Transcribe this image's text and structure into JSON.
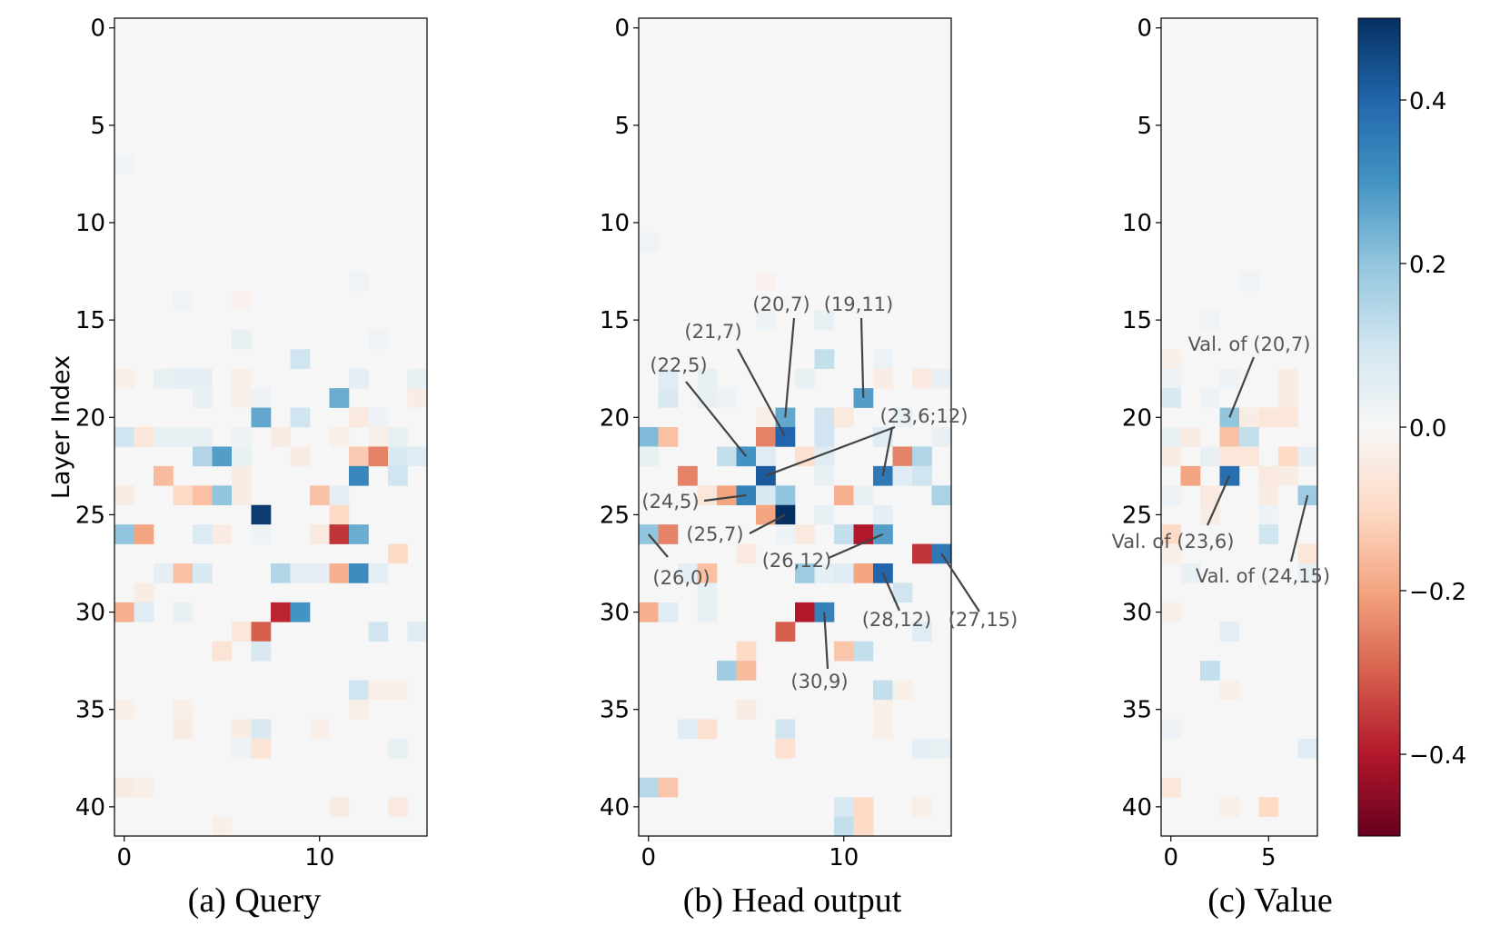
{
  "chart_data": [
    {
      "type": "heatmap",
      "panel": "query",
      "caption": "(a) Query",
      "ylabel": "Layer Index",
      "n_cols": 16,
      "n_rows": 42,
      "x_ticks": [
        0,
        10
      ],
      "y_ticks": [
        0,
        5,
        10,
        15,
        20,
        25,
        30,
        35,
        40
      ],
      "cells": [
        [
          7,
          0,
          0.015
        ],
        [
          13,
          12,
          0.02
        ],
        [
          14,
          6,
          -0.02
        ],
        [
          14,
          3,
          0.02
        ],
        [
          16,
          6,
          0.04
        ],
        [
          16,
          13,
          0.02
        ],
        [
          17,
          9,
          0.1
        ],
        [
          18,
          0,
          -0.03
        ],
        [
          18,
          2,
          0.04
        ],
        [
          18,
          3,
          0.05
        ],
        [
          18,
          4,
          0.05
        ],
        [
          18,
          6,
          -0.03
        ],
        [
          18,
          12,
          0.05
        ],
        [
          18,
          15,
          0.04
        ],
        [
          19,
          4,
          0.04
        ],
        [
          19,
          6,
          -0.03
        ],
        [
          19,
          7,
          0.03
        ],
        [
          19,
          11,
          0.25
        ],
        [
          19,
          15,
          -0.04
        ],
        [
          20,
          9,
          0.1
        ],
        [
          20,
          12,
          -0.05
        ],
        [
          20,
          13,
          0.03
        ],
        [
          20,
          7,
          0.26
        ],
        [
          21,
          0,
          0.1
        ],
        [
          21,
          1,
          -0.06
        ],
        [
          21,
          2,
          0.04
        ],
        [
          21,
          3,
          0.04
        ],
        [
          21,
          4,
          0.04
        ],
        [
          21,
          6,
          0.03
        ],
        [
          21,
          8,
          -0.04
        ],
        [
          21,
          11,
          -0.03
        ],
        [
          21,
          13,
          -0.03
        ],
        [
          21,
          14,
          0.04
        ],
        [
          22,
          4,
          0.15
        ],
        [
          22,
          5,
          0.28
        ],
        [
          22,
          6,
          0.04
        ],
        [
          22,
          9,
          -0.04
        ],
        [
          22,
          12,
          -0.13
        ],
        [
          22,
          13,
          -0.25
        ],
        [
          22,
          14,
          0.08
        ],
        [
          22,
          15,
          0.06
        ],
        [
          23,
          2,
          -0.16
        ],
        [
          23,
          12,
          0.33
        ],
        [
          23,
          14,
          0.1
        ],
        [
          23,
          6,
          -0.04
        ],
        [
          24,
          3,
          -0.1
        ],
        [
          24,
          4,
          -0.15
        ],
        [
          24,
          5,
          0.2
        ],
        [
          24,
          6,
          -0.04
        ],
        [
          24,
          10,
          -0.15
        ],
        [
          24,
          11,
          0.05
        ],
        [
          24,
          0,
          -0.04
        ],
        [
          25,
          7,
          0.48
        ],
        [
          25,
          11,
          -0.1
        ],
        [
          26,
          0,
          0.2
        ],
        [
          26,
          1,
          -0.2
        ],
        [
          26,
          4,
          0.07
        ],
        [
          26,
          5,
          -0.04
        ],
        [
          26,
          7,
          0.03
        ],
        [
          26,
          10,
          -0.05
        ],
        [
          26,
          11,
          -0.36
        ],
        [
          26,
          12,
          0.25
        ],
        [
          27,
          14,
          -0.1
        ],
        [
          28,
          2,
          0.05
        ],
        [
          28,
          3,
          -0.15
        ],
        [
          28,
          4,
          0.08
        ],
        [
          28,
          8,
          0.15
        ],
        [
          28,
          9,
          0.05
        ],
        [
          28,
          10,
          0.05
        ],
        [
          28,
          11,
          -0.18
        ],
        [
          28,
          12,
          0.32
        ],
        [
          28,
          13,
          0.05
        ],
        [
          29,
          1,
          -0.04
        ],
        [
          30,
          0,
          -0.18
        ],
        [
          30,
          1,
          0.06
        ],
        [
          30,
          3,
          0.04
        ],
        [
          30,
          8,
          -0.38
        ],
        [
          30,
          9,
          0.3
        ],
        [
          31,
          6,
          -0.06
        ],
        [
          31,
          7,
          -0.3
        ],
        [
          31,
          13,
          0.1
        ],
        [
          31,
          15,
          0.06
        ],
        [
          32,
          5,
          -0.07
        ],
        [
          32,
          7,
          0.08
        ],
        [
          34,
          12,
          0.1
        ],
        [
          34,
          13,
          -0.03
        ],
        [
          34,
          14,
          -0.03
        ],
        [
          35,
          0,
          -0.03
        ],
        [
          35,
          3,
          -0.03
        ],
        [
          35,
          12,
          -0.03
        ],
        [
          36,
          3,
          -0.04
        ],
        [
          36,
          6,
          -0.04
        ],
        [
          36,
          7,
          0.08
        ],
        [
          36,
          10,
          -0.03
        ],
        [
          37,
          6,
          0.03
        ],
        [
          37,
          7,
          -0.07
        ],
        [
          37,
          14,
          0.04
        ],
        [
          39,
          0,
          -0.04
        ],
        [
          39,
          1,
          -0.03
        ],
        [
          40,
          11,
          -0.04
        ],
        [
          40,
          14,
          -0.05
        ],
        [
          41,
          5,
          -0.03
        ]
      ]
    },
    {
      "type": "heatmap",
      "panel": "head_output",
      "caption": "(b) Head output",
      "ylabel": "",
      "n_cols": 16,
      "n_rows": 42,
      "x_ticks": [
        0,
        10
      ],
      "y_ticks": [
        0,
        5,
        10,
        15,
        20,
        25,
        30,
        35,
        40
      ],
      "cells": [
        [
          11,
          0,
          0.02
        ],
        [
          13,
          6,
          -0.02
        ],
        [
          15,
          6,
          0.03
        ],
        [
          15,
          9,
          0.04
        ],
        [
          17,
          9,
          0.12
        ],
        [
          17,
          12,
          0.03
        ],
        [
          18,
          1,
          0.06
        ],
        [
          18,
          3,
          0.04
        ],
        [
          18,
          8,
          0.04
        ],
        [
          18,
          12,
          -0.04
        ],
        [
          18,
          14,
          -0.05
        ],
        [
          18,
          15,
          0.04
        ],
        [
          19,
          1,
          0.08
        ],
        [
          19,
          3,
          0.04
        ],
        [
          19,
          4,
          0.03
        ],
        [
          19,
          11,
          0.28
        ],
        [
          20,
          6,
          -0.03
        ],
        [
          20,
          7,
          0.26
        ],
        [
          20,
          9,
          0.1
        ],
        [
          20,
          10,
          -0.05
        ],
        [
          20,
          13,
          0.04
        ],
        [
          21,
          0,
          0.22
        ],
        [
          21,
          1,
          -0.15
        ],
        [
          21,
          6,
          -0.25
        ],
        [
          21,
          7,
          0.4
        ],
        [
          21,
          9,
          0.1
        ],
        [
          21,
          12,
          0.06
        ],
        [
          21,
          15,
          0.04
        ],
        [
          22,
          0,
          0.04
        ],
        [
          22,
          4,
          0.12
        ],
        [
          22,
          5,
          0.3
        ],
        [
          22,
          6,
          0.06
        ],
        [
          22,
          8,
          -0.08
        ],
        [
          22,
          9,
          0.06
        ],
        [
          22,
          13,
          -0.25
        ],
        [
          22,
          14,
          0.15
        ],
        [
          23,
          2,
          -0.25
        ],
        [
          23,
          6,
          0.42
        ],
        [
          23,
          9,
          0.04
        ],
        [
          23,
          12,
          0.36
        ],
        [
          23,
          13,
          0.06
        ],
        [
          23,
          14,
          0.1
        ],
        [
          24,
          3,
          -0.06
        ],
        [
          24,
          4,
          -0.2
        ],
        [
          24,
          5,
          0.34
        ],
        [
          24,
          6,
          0.08
        ],
        [
          24,
          7,
          0.2
        ],
        [
          24,
          10,
          -0.18
        ],
        [
          24,
          11,
          0.04
        ],
        [
          24,
          15,
          0.16
        ],
        [
          25,
          6,
          -0.2
        ],
        [
          25,
          7,
          0.5
        ],
        [
          25,
          9,
          0.04
        ],
        [
          25,
          12,
          0.05
        ],
        [
          26,
          0,
          0.2
        ],
        [
          26,
          1,
          -0.25
        ],
        [
          26,
          7,
          0.03
        ],
        [
          26,
          8,
          -0.05
        ],
        [
          26,
          10,
          0.12
        ],
        [
          26,
          11,
          -0.4
        ],
        [
          26,
          12,
          0.28
        ],
        [
          27,
          5,
          -0.05
        ],
        [
          27,
          14,
          -0.36
        ],
        [
          27,
          15,
          0.36
        ],
        [
          28,
          2,
          0.05
        ],
        [
          28,
          3,
          -0.15
        ],
        [
          28,
          8,
          0.18
        ],
        [
          28,
          9,
          0.05
        ],
        [
          28,
          10,
          0.06
        ],
        [
          28,
          11,
          -0.2
        ],
        [
          28,
          12,
          0.4
        ],
        [
          29,
          3,
          0.04
        ],
        [
          29,
          13,
          0.1
        ],
        [
          30,
          0,
          -0.18
        ],
        [
          30,
          1,
          0.06
        ],
        [
          30,
          3,
          0.04
        ],
        [
          30,
          8,
          -0.4
        ],
        [
          30,
          9,
          0.34
        ],
        [
          31,
          7,
          -0.3
        ],
        [
          31,
          14,
          0.06
        ],
        [
          32,
          5,
          -0.1
        ],
        [
          32,
          10,
          -0.14
        ],
        [
          32,
          11,
          0.12
        ],
        [
          33,
          4,
          0.18
        ],
        [
          33,
          5,
          -0.16
        ],
        [
          34,
          12,
          0.12
        ],
        [
          34,
          13,
          -0.03
        ],
        [
          35,
          5,
          -0.04
        ],
        [
          35,
          12,
          -0.03
        ],
        [
          36,
          2,
          0.06
        ],
        [
          36,
          3,
          -0.08
        ],
        [
          36,
          7,
          0.1
        ],
        [
          36,
          12,
          -0.03
        ],
        [
          37,
          7,
          -0.08
        ],
        [
          37,
          14,
          0.05
        ],
        [
          37,
          15,
          0.04
        ],
        [
          39,
          0,
          0.14
        ],
        [
          39,
          1,
          -0.14
        ],
        [
          40,
          10,
          0.08
        ],
        [
          40,
          11,
          -0.1
        ],
        [
          40,
          14,
          -0.03
        ],
        [
          41,
          10,
          0.12
        ],
        [
          41,
          11,
          -0.1
        ]
      ],
      "annotations": [
        {
          "text": "(20,7)",
          "col": 7,
          "row": 20
        },
        {
          "text": "(19,11)",
          "col": 11,
          "row": 19
        },
        {
          "text": "(21,7)",
          "col": 7,
          "row": 21
        },
        {
          "text": "(22,5)",
          "col": 5,
          "row": 22
        },
        {
          "text": "(23,6;12)",
          "col": 6,
          "row": 23
        },
        {
          "text": "(24,5)",
          "col": 5,
          "row": 24
        },
        {
          "text": "(25,7)",
          "col": 7,
          "row": 25
        },
        {
          "text": "(26,0)",
          "col": 0,
          "row": 26
        },
        {
          "text": "(26,12)",
          "col": 12,
          "row": 26
        },
        {
          "text": "(28,12)",
          "col": 12,
          "row": 28
        },
        {
          "text": "(27,15)",
          "col": 15,
          "row": 27
        },
        {
          "text": "(30,9)",
          "col": 9,
          "row": 30
        }
      ]
    },
    {
      "type": "heatmap",
      "panel": "value",
      "caption": "(c) Value",
      "ylabel": "",
      "n_cols": 8,
      "n_rows": 42,
      "x_ticks": [
        0,
        5
      ],
      "y_ticks": [
        0,
        5,
        10,
        15,
        20,
        25,
        30,
        35,
        40
      ],
      "cells": [
        [
          13,
          4,
          0.02
        ],
        [
          15,
          2,
          0.02
        ],
        [
          17,
          0,
          -0.03
        ],
        [
          18,
          0,
          0.03
        ],
        [
          18,
          3,
          0.03
        ],
        [
          18,
          6,
          -0.04
        ],
        [
          19,
          0,
          0.08
        ],
        [
          19,
          2,
          0.03
        ],
        [
          19,
          6,
          -0.04
        ],
        [
          20,
          3,
          0.2
        ],
        [
          20,
          4,
          -0.04
        ],
        [
          20,
          5,
          -0.06
        ],
        [
          20,
          6,
          -0.06
        ],
        [
          21,
          1,
          -0.04
        ],
        [
          21,
          3,
          -0.15
        ],
        [
          21,
          4,
          0.12
        ],
        [
          21,
          0,
          0.04
        ],
        [
          22,
          0,
          -0.04
        ],
        [
          22,
          2,
          0.04
        ],
        [
          22,
          3,
          -0.06
        ],
        [
          22,
          4,
          -0.06
        ],
        [
          22,
          6,
          -0.1
        ],
        [
          22,
          7,
          0.05
        ],
        [
          23,
          1,
          -0.2
        ],
        [
          23,
          3,
          0.38
        ],
        [
          23,
          5,
          -0.05
        ],
        [
          23,
          6,
          -0.04
        ],
        [
          24,
          2,
          -0.05
        ],
        [
          24,
          5,
          -0.04
        ],
        [
          24,
          7,
          0.18
        ],
        [
          24,
          0,
          0.03
        ],
        [
          25,
          2,
          -0.04
        ],
        [
          25,
          5,
          0.03
        ],
        [
          26,
          0,
          -0.1
        ],
        [
          26,
          5,
          0.1
        ],
        [
          27,
          0,
          -0.03
        ],
        [
          27,
          7,
          -0.06
        ],
        [
          28,
          1,
          0.04
        ],
        [
          28,
          7,
          0.04
        ],
        [
          30,
          0,
          -0.03
        ],
        [
          31,
          3,
          0.05
        ],
        [
          33,
          2,
          0.12
        ],
        [
          34,
          3,
          -0.03
        ],
        [
          36,
          0,
          0.03
        ],
        [
          37,
          7,
          0.06
        ],
        [
          39,
          0,
          -0.06
        ],
        [
          40,
          3,
          -0.03
        ],
        [
          40,
          5,
          -0.1
        ]
      ],
      "annotations": [
        {
          "text": "Val. of (20,7)",
          "col": 3,
          "row": 20
        },
        {
          "text": "Val. of (23,6)",
          "col": 3,
          "row": 23
        },
        {
          "text": "Val. of (24,15)",
          "col": 7,
          "row": 24
        }
      ]
    }
  ],
  "colorbar": {
    "colormap": "RdBu",
    "vmin": -0.5,
    "vmax": 0.5,
    "ticks": [
      "0.4",
      "0.2",
      "0.0",
      "−0.2",
      "−0.4"
    ],
    "tick_values": [
      0.4,
      0.2,
      0.0,
      -0.2,
      -0.4
    ]
  }
}
